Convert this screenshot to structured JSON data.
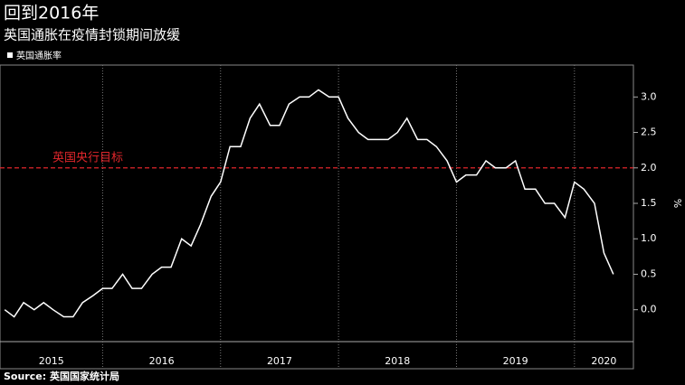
{
  "chart_data": {
    "type": "line",
    "title": "回到2016年",
    "subtitle": "英国通胀在疫情封锁期间放缓",
    "y_label": "%",
    "source": "Source: 英国国家统计局",
    "series": [
      {
        "name": "英国通胀率",
        "color": "#ffffff",
        "x": [
          2015.17,
          2015.25,
          2015.33,
          2015.42,
          2015.5,
          2015.58,
          2015.67,
          2015.75,
          2015.83,
          2015.92,
          2016.0,
          2016.08,
          2016.17,
          2016.25,
          2016.33,
          2016.42,
          2016.5,
          2016.58,
          2016.67,
          2016.75,
          2016.83,
          2016.92,
          2017.0,
          2017.08,
          2017.17,
          2017.25,
          2017.33,
          2017.42,
          2017.5,
          2017.58,
          2017.67,
          2017.75,
          2017.83,
          2017.92,
          2018.0,
          2018.08,
          2018.17,
          2018.25,
          2018.33,
          2018.42,
          2018.5,
          2018.58,
          2018.67,
          2018.75,
          2018.83,
          2018.92,
          2019.0,
          2019.08,
          2019.17,
          2019.25,
          2019.33,
          2019.42,
          2019.5,
          2019.58,
          2019.67,
          2019.75,
          2019.83,
          2019.92,
          2020.0,
          2020.08,
          2020.17,
          2020.25,
          2020.33
        ],
        "values": [
          0.0,
          -0.1,
          0.1,
          0.0,
          0.1,
          0.0,
          -0.1,
          -0.1,
          0.1,
          0.2,
          0.3,
          0.3,
          0.5,
          0.3,
          0.3,
          0.5,
          0.6,
          0.6,
          1.0,
          0.9,
          1.2,
          1.6,
          1.8,
          2.3,
          2.3,
          2.7,
          2.9,
          2.6,
          2.6,
          2.9,
          3.0,
          3.0,
          3.1,
          3.0,
          3.0,
          2.7,
          2.5,
          2.4,
          2.4,
          2.4,
          2.5,
          2.7,
          2.4,
          2.4,
          2.3,
          2.1,
          1.8,
          1.9,
          1.9,
          2.1,
          2.0,
          2.0,
          2.1,
          1.7,
          1.7,
          1.5,
          1.5,
          1.3,
          1.8,
          1.7,
          1.5,
          0.8,
          0.5
        ]
      }
    ],
    "target": {
      "value": 2.0,
      "label": "英国央行目标",
      "color": "#e0262b"
    },
    "xlim": [
      2015.13,
      2020.5
    ],
    "xticks": [
      2016,
      2017,
      2018,
      2019,
      2020
    ],
    "year_labels": [
      "2015",
      "2016",
      "2017",
      "2018",
      "2019",
      "2020"
    ],
    "ylim": [
      -0.45,
      3.45
    ],
    "yticks": [
      {
        "value": 0,
        "label": "0.0"
      },
      0.5,
      {
        "value": 1,
        "label": "1.0"
      },
      1.5,
      {
        "value": 2,
        "label": "2.0"
      },
      2.5,
      {
        "value": 3,
        "label": "3.0"
      }
    ],
    "grid": true
  }
}
